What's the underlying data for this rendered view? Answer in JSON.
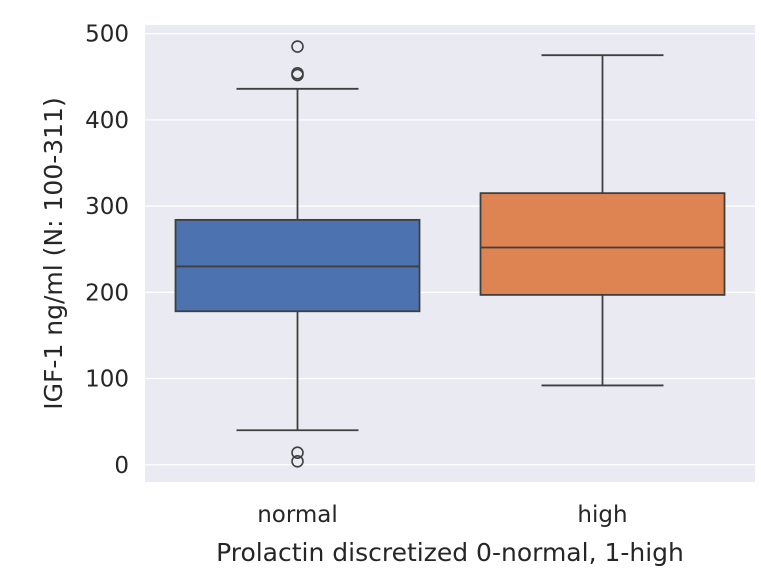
{
  "chart_data": {
    "type": "box",
    "title": "",
    "xlabel": "Prolactin discretized 0-normal, 1-high",
    "ylabel": "IGF-1 ng/ml (N: 100-311)",
    "ylim": [
      -20,
      510
    ],
    "yticks": [
      0,
      100,
      200,
      300,
      400,
      500
    ],
    "grid": true,
    "categories": [
      "normal",
      "high"
    ],
    "boxes": [
      {
        "category": "normal",
        "color": "#4c72b0",
        "whisker_low": 40,
        "q1": 178,
        "median": 230,
        "q3": 284,
        "whisker_high": 436,
        "outliers": [
          452,
          454,
          485,
          14,
          4
        ]
      },
      {
        "category": "high",
        "color": "#dd8452",
        "whisker_low": 92,
        "q1": 197,
        "median": 252,
        "q3": 315,
        "whisker_high": 475,
        "outliers": []
      }
    ]
  },
  "colors": {
    "plot_background": "#eaeaf2",
    "grid": "#ffffff",
    "line": "#3f3f3f",
    "text": "#262626"
  }
}
